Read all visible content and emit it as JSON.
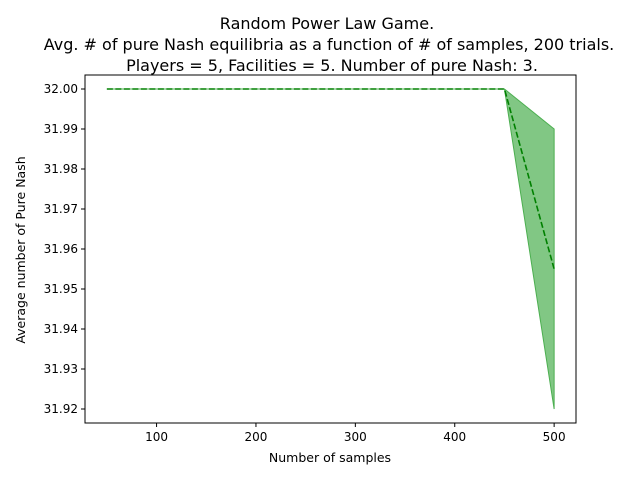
{
  "chart_data": {
    "type": "line",
    "title_lines": [
      "Random Power Law Game.",
      "Avg. # of pure Nash equilibria as a function of # of samples, 200 trials.",
      "Players = 5, Facilities = 5. Number of pure Nash: 3."
    ],
    "xlabel": "Number of samples",
    "ylabel": "Average number of Pure Nash",
    "xlim": [
      28,
      522
    ],
    "ylim": [
      31.9165,
      32.0035
    ],
    "xticks": [
      100,
      200,
      300,
      400,
      500
    ],
    "xtick_labels": [
      "100",
      "200",
      "300",
      "400",
      "500"
    ],
    "yticks": [
      31.92,
      31.93,
      31.94,
      31.95,
      31.96,
      31.97,
      31.98,
      31.99,
      32.0
    ],
    "ytick_labels": [
      "31.92",
      "31.93",
      "31.94",
      "31.95",
      "31.96",
      "31.97",
      "31.98",
      "31.99",
      "32.00"
    ],
    "grid": false,
    "legend": "none",
    "x": [
      50,
      100,
      150,
      200,
      250,
      300,
      350,
      400,
      450,
      500
    ],
    "series": [
      {
        "values": [
          32.0,
          32.0,
          32.0,
          32.0,
          32.0,
          32.0,
          32.0,
          32.0,
          32.0,
          31.955
        ],
        "lower": [
          32.0,
          32.0,
          32.0,
          32.0,
          32.0,
          32.0,
          32.0,
          32.0,
          32.0,
          31.92
        ],
        "upper": [
          32.0,
          32.0,
          32.0,
          32.0,
          32.0,
          32.0,
          32.0,
          32.0,
          32.0,
          31.99
        ],
        "line_color": "#008000",
        "band_color": "#4caf50",
        "line_style": "dashed"
      }
    ]
  }
}
